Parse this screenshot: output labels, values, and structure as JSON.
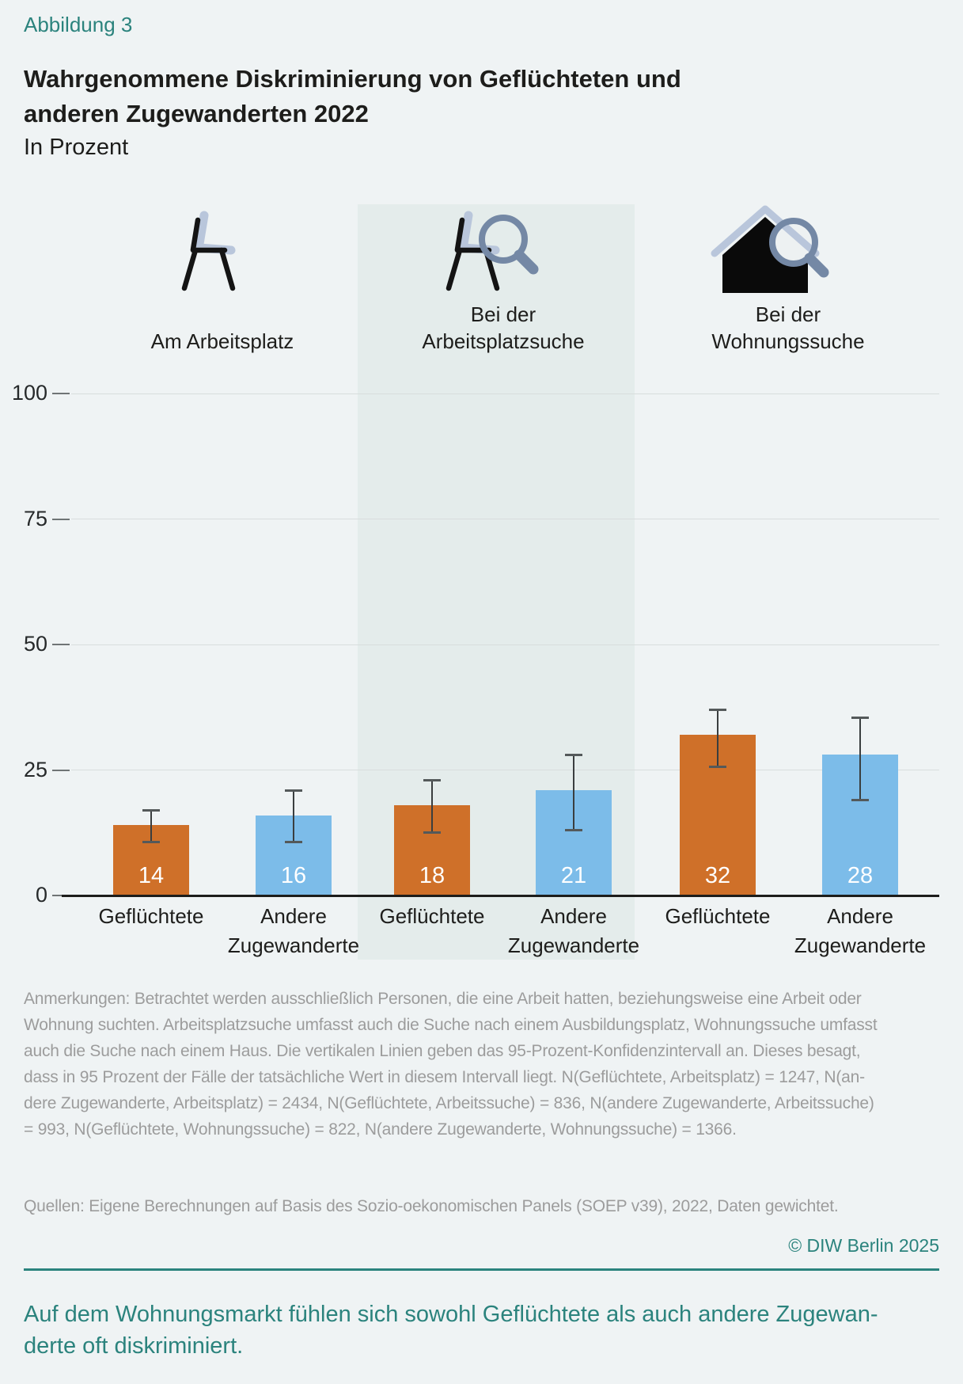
{
  "figure_label": "Abbildung 3",
  "title_lines": [
    "Wahrgenommene Diskriminierung von Geflüchteten und",
    "anderen Zugewanderten 2022"
  ],
  "subtitle": "In Prozent",
  "colors": {
    "accent_teal": "#2b837d",
    "refugee_orange": "#cf7029",
    "immigrant_blue": "#7cbce9",
    "highlight_band": "#e4eceb",
    "background": "#eff3f4",
    "notes_gray": "#9c9c9c",
    "icon_slate": "#7488a5",
    "icon_periwinkle": "#b9c6db"
  },
  "chart_data": {
    "type": "bar",
    "title": "Wahrgenommene Diskriminierung von Geflüchteten und anderen Zugewanderten 2022",
    "subtitle": "In Prozent",
    "unit": "Prozent",
    "ylim": [
      0,
      100
    ],
    "yticks": [
      0,
      25,
      50,
      75,
      100
    ],
    "grid": "horizontal",
    "legend_position": "none",
    "group_headers": [
      {
        "lines": [
          "Am Arbeitsplatz"
        ],
        "icon": "chair-icon",
        "highlighted": false
      },
      {
        "lines": [
          "Bei der",
          "Arbeitsplatzsuche"
        ],
        "icon": "chair-magnifier-icon",
        "highlighted": true
      },
      {
        "lines": [
          "Bei der",
          "Wohnungssuche"
        ],
        "icon": "house-magnifier-icon",
        "highlighted": false
      }
    ],
    "series": [
      {
        "name": "Geflüchtete",
        "color": "#cf7029",
        "values": [
          14,
          18,
          32
        ]
      },
      {
        "name": "Andere Zugewanderte",
        "color": "#7cbce9",
        "values": [
          16,
          21,
          28
        ]
      }
    ],
    "bars": [
      {
        "group": "Am Arbeitsplatz",
        "category_lines": [
          "Geflüchtete",
          ""
        ],
        "value": 14,
        "ci_low": 10.5,
        "ci_high": 17,
        "color": "#cf7029"
      },
      {
        "group": "Am Arbeitsplatz",
        "category_lines": [
          "Andere",
          "Zugewanderte"
        ],
        "value": 16,
        "ci_low": 10.5,
        "ci_high": 21,
        "color": "#7cbce9"
      },
      {
        "group": "Bei der Arbeitsplatzsuche",
        "category_lines": [
          "Geflüchtete",
          ""
        ],
        "value": 18,
        "ci_low": 12.5,
        "ci_high": 23,
        "color": "#cf7029"
      },
      {
        "group": "Bei der Arbeitsplatzsuche",
        "category_lines": [
          "Andere",
          "Zugewanderte"
        ],
        "value": 21,
        "ci_low": 13,
        "ci_high": 28,
        "color": "#7cbce9"
      },
      {
        "group": "Bei der Wohnungssuche",
        "category_lines": [
          "Geflüchtete",
          ""
        ],
        "value": 32,
        "ci_low": 25.5,
        "ci_high": 37,
        "color": "#cf7029"
      },
      {
        "group": "Bei der Wohnungssuche",
        "category_lines": [
          "Andere",
          "Zugewanderte"
        ],
        "value": 28,
        "ci_low": 19,
        "ci_high": 35.5,
        "color": "#7cbce9"
      }
    ],
    "error_bars": "95-Prozent-Konfidenzintervall"
  },
  "notes_lines": [
    "Anmerkungen: Betrachtet werden ausschließlich Personen, die eine Arbeit hatten, beziehungsweise eine Arbeit oder",
    "Wohnung suchten. Arbeitsplatzsuche umfasst auch die Suche nach einem Ausbildungsplatz, Wohnungssuche umfasst",
    "auch die Suche nach einem Haus. Die vertikalen Linien geben das 95-Prozent-Konfidenzintervall an. Dieses besagt,",
    "dass in 95 Prozent der Fälle der tatsächliche Wert in diesem Intervall liegt. N(Geflüchtete, Arbeitsplatz) = 1247, N(an-",
    "dere Zugewanderte, Arbeitsplatz) = 2434, N(Geflüchtete, Arbeitssuche) = 836, N(andere Zugewanderte, Arbeitssuche)",
    "= 993, N(Geflüchtete, Wohnungssuche) = 822, N(andere Zugewanderte, Wohnungssuche) = 1366."
  ],
  "quellen": "Quellen: Eigene Berechnungen auf Basis des Sozio-oekonomischen Panels (SOEP v39), 2022, Daten gewichtet.",
  "copyright": "© DIW Berlin 2025",
  "footer_lines": [
    "Auf dem Wohnungsmarkt fühlen sich sowohl Geflüchtete als auch andere Zugewan-",
    "derte oft diskriminiert."
  ]
}
